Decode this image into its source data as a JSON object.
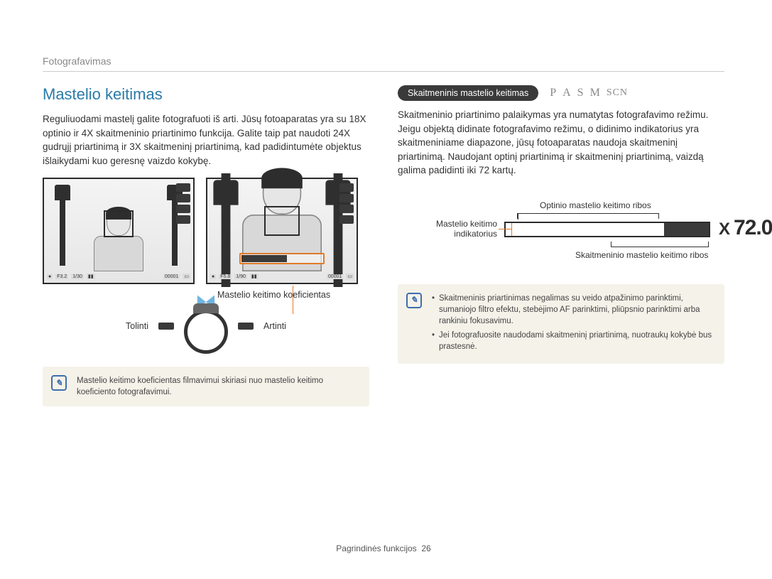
{
  "breadcrumb": "Fotografavimas",
  "title": "Mastelio keitimas",
  "left": {
    "paragraph": "Reguliuodami mastelį galite fotografuoti iš arti. Jūsų fotoaparatas yra su 18X optinio ir 4X skaitmeninio priartinimo funkcija. Galite taip pat naudoti 24X gudrųjį priartinimą ir 3X skaitmeninį priartinimą, kad padidintumėte objektus išlaikydami kuo geresnę vaizdo kokybę.",
    "coef_caption": "Mastelio keitimo koeficientas",
    "zoom_out": "Tolinti",
    "zoom_in": "Artinti",
    "note": "Mastelio keitimo koeficientas filmavimui skiriasi nuo mastelio keitimo koeficiento fotografavimui."
  },
  "right": {
    "pill": "Skaitmeninis mastelio keitimas",
    "modes": [
      "P",
      "A",
      "S",
      "M",
      "SCN"
    ],
    "paragraph": "Skaitmeninio priartinimo palaikymas yra numatytas fotografavimo režimu. Jeigu objektą didinate fotografavimo režimu, o didinimo indikatorius yra skaitmeniniame diapazone, jūsų fotoaparatas naudoja skaitmeninį priartinimą. Naudojant optinį priartinimą ir skaitmeninį priartinimą, vaizdą galima padidinti iki 72 kartų.",
    "diagram": {
      "optical_label": "Optinio mastelio keitimo ribos",
      "indicator_label": "Mastelio keitimo indikatorius",
      "digital_label": "Skaitmeninio mastelio keitimo ribos",
      "x_value": "72.0",
      "optical_ratio": 0.78,
      "bar_border": "#2b2b2b",
      "digital_fill": "#3a3a3a",
      "indicator_color": "#e07a2a"
    },
    "notes": [
      "Skaitmeninis priartinimas negalimas su veido atpažinimo parinktimi, sumaniojo filtro efektu, stebėjimo AF parinktimi, pliūpsnio parinktimi arba rankiniu fokusavimu.",
      "Jei fotografuosite naudodami skaitmeninį priartinimą, nuotraukų kokybė bus prastesnė."
    ]
  },
  "footer": {
    "section": "Pagrindinės funkcijos",
    "page": "26"
  },
  "colors": {
    "title": "#2a7aa8",
    "text": "#333333",
    "accent": "#e07a2a",
    "note_bg": "#f5f2e9",
    "note_icon": "#3c6fb0",
    "arrow": "#6fb5e1"
  }
}
